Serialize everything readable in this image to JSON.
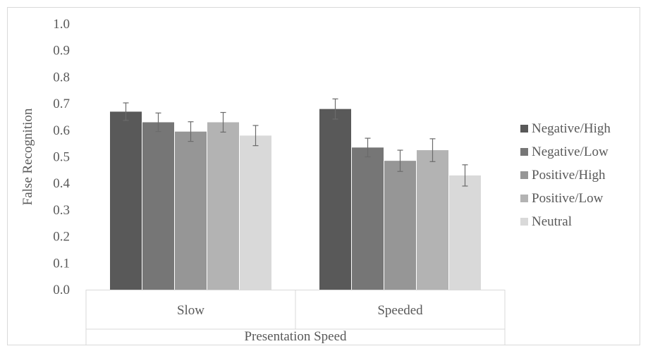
{
  "chart_data": {
    "type": "bar",
    "title": "",
    "xlabel": "Presentation Speed",
    "ylabel": "False Recognition",
    "ylim": [
      0,
      1.0
    ],
    "yticks": [
      "0.0",
      "0.1",
      "0.2",
      "0.3",
      "0.4",
      "0.5",
      "0.6",
      "0.7",
      "0.8",
      "0.9",
      "1.0"
    ],
    "categories": [
      "Slow",
      "Speeded"
    ],
    "legend_position": "right",
    "series": [
      {
        "name": "Negative/High",
        "color": "#595959",
        "values": [
          0.67,
          0.68
        ],
        "errors": [
          0.033,
          0.038
        ]
      },
      {
        "name": "Negative/Low",
        "color": "#767676",
        "values": [
          0.63,
          0.535
        ],
        "errors": [
          0.035,
          0.035
        ]
      },
      {
        "name": "Positive/High",
        "color": "#969696",
        "values": [
          0.595,
          0.485
        ],
        "errors": [
          0.037,
          0.04
        ]
      },
      {
        "name": "Positive/Low",
        "color": "#b3b3b3",
        "values": [
          0.63,
          0.525
        ],
        "errors": [
          0.037,
          0.043
        ]
      },
      {
        "name": "Neutral",
        "color": "#d9d9d9",
        "values": [
          0.58,
          0.43
        ],
        "errors": [
          0.038,
          0.04
        ]
      }
    ]
  }
}
